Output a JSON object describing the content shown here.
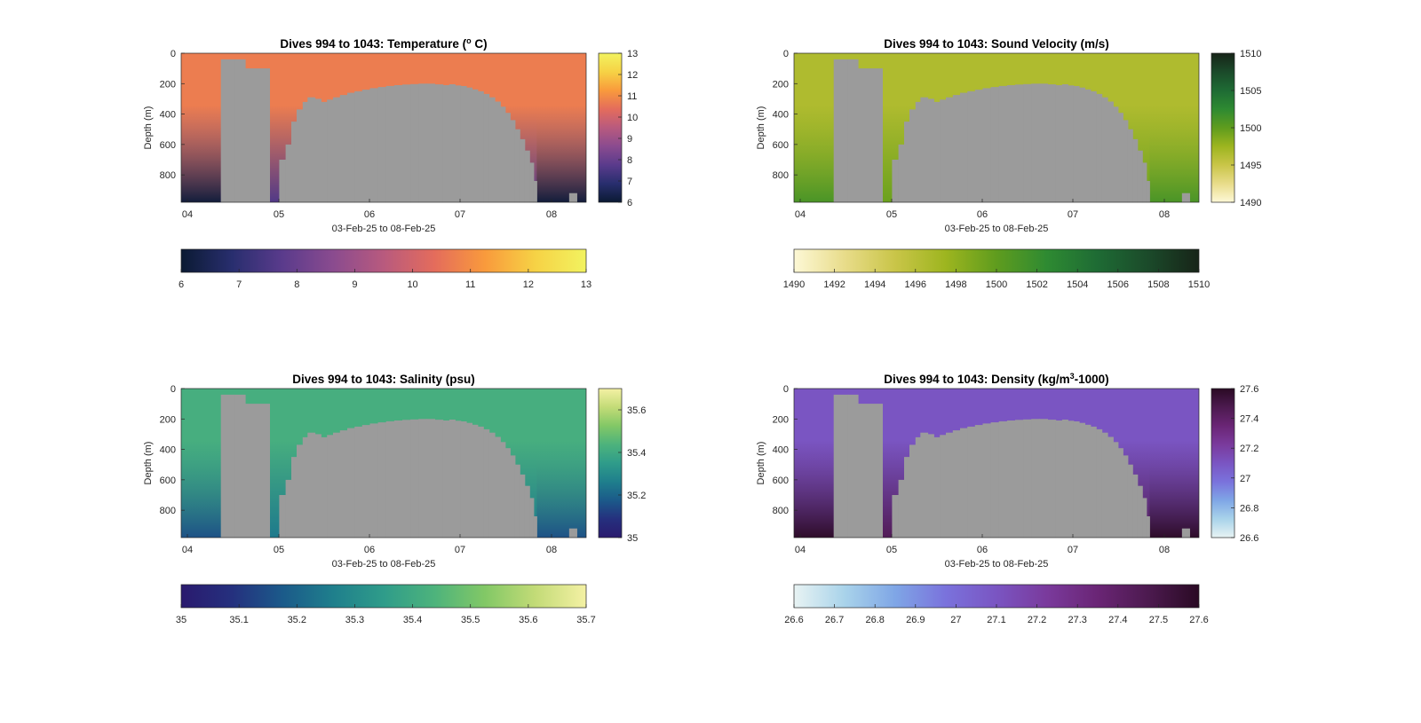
{
  "figure": {
    "background": "#ffffff",
    "mask_color": "#9b9b9b"
  },
  "chart_data": [
    {
      "type": "heatmap",
      "title_parts": [
        "Dives 994 to 1043: Temperature (",
        "o",
        " C)"
      ],
      "xlabel": "03-Feb-25 to 08-Feb-25",
      "ylabel": "Depth (m)",
      "x_ticks": [
        "04",
        "05",
        "06",
        "07",
        "08"
      ],
      "y_ticks": [
        "0",
        "200",
        "400",
        "600",
        "800"
      ],
      "ylim": [
        0,
        980
      ],
      "side_colorbar_ticks": [
        "6",
        "7",
        "8",
        "9",
        "10",
        "11",
        "12",
        "13"
      ],
      "bottom_colorbar_ticks": [
        "6",
        "7",
        "8",
        "9",
        "10",
        "11",
        "12",
        "13"
      ],
      "clim": [
        6,
        13
      ],
      "colormap": [
        "#0b1a33",
        "#282e6e",
        "#5a3b8c",
        "#8a4b8f",
        "#b85a7e",
        "#e46c5c",
        "#f99a3c",
        "#f6d245",
        "#f2f360"
      ],
      "surface_value": 10.7,
      "deep_value": 7.6
    },
    {
      "type": "heatmap",
      "title_parts": [
        "Dives 994 to 1043: Sound Velocity (m/s)"
      ],
      "xlabel": "03-Feb-25 to 08-Feb-25",
      "ylabel": "Depth (m)",
      "x_ticks": [
        "04",
        "05",
        "06",
        "07",
        "08"
      ],
      "y_ticks": [
        "0",
        "200",
        "400",
        "600",
        "800"
      ],
      "ylim": [
        0,
        980
      ],
      "side_colorbar_ticks": [
        "1490",
        "1495",
        "1500",
        "1505",
        "1510"
      ],
      "bottom_colorbar_ticks": [
        "1490",
        "1492",
        "1494",
        "1496",
        "1498",
        "1500",
        "1502",
        "1504",
        "1506",
        "1508",
        "1510"
      ],
      "clim": [
        1490,
        1510
      ],
      "colormap": [
        "#fdf8d6",
        "#e8dc8a",
        "#c9c548",
        "#9db51f",
        "#5f9c1e",
        "#2e8a32",
        "#1e6b34",
        "#1b4a2a",
        "#172418"
      ],
      "surface_value": 1496.5,
      "deep_value": 1499.5
    },
    {
      "type": "heatmap",
      "title_parts": [
        "Dives 994 to 1043: Salinity (psu)"
      ],
      "xlabel": "03-Feb-25 to 08-Feb-25",
      "ylabel": "Depth (m)",
      "x_ticks": [
        "04",
        "05",
        "06",
        "07",
        "08"
      ],
      "y_ticks": [
        "0",
        "200",
        "400",
        "600",
        "800"
      ],
      "ylim": [
        0,
        980
      ],
      "side_colorbar_ticks": [
        "35",
        "35.2",
        "35.4",
        "35.6"
      ],
      "bottom_colorbar_ticks": [
        "35",
        "35.1",
        "35.2",
        "35.3",
        "35.4",
        "35.5",
        "35.6",
        "35.7"
      ],
      "clim": [
        35,
        35.7
      ],
      "colormap": [
        "#2a1a6e",
        "#25307e",
        "#1b5a8a",
        "#1f7f8c",
        "#2f9c8a",
        "#4db37c",
        "#82c866",
        "#c3db77",
        "#f4f1a4"
      ],
      "surface_value": 35.42,
      "deep_value": 35.25
    },
    {
      "type": "heatmap",
      "title_parts": [
        "Dives 994 to 1043: Density (kg/m",
        "3",
        "-1000)"
      ],
      "xlabel": "03-Feb-25 to 08-Feb-25",
      "ylabel": "Depth (m)",
      "x_ticks": [
        "04",
        "05",
        "06",
        "07",
        "08"
      ],
      "y_ticks": [
        "0",
        "200",
        "400",
        "600",
        "800"
      ],
      "ylim": [
        0,
        980
      ],
      "side_colorbar_ticks": [
        "26.6",
        "26.8",
        "27",
        "27.2",
        "27.4",
        "27.6"
      ],
      "bottom_colorbar_ticks": [
        "26.6",
        "26.7",
        "26.8",
        "26.9",
        "27",
        "27.1",
        "27.2",
        "27.3",
        "27.4",
        "27.5",
        "27.6"
      ],
      "clim": [
        26.6,
        27.6
      ],
      "colormap": [
        "#e8f3f3",
        "#a9d3ea",
        "#7fa6e6",
        "#7a72dc",
        "#7a55c2",
        "#7a3a9c",
        "#6a2575",
        "#4c1a4f",
        "#2a0a24"
      ],
      "surface_value": 27.1,
      "deep_value": 27.45
    }
  ]
}
